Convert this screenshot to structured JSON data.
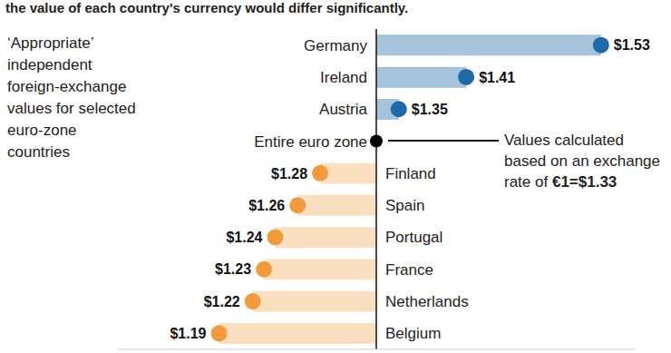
{
  "chart_data": {
    "type": "bar",
    "orientation": "horizontal",
    "title": "the value of each country's currency would differ significantly.",
    "description": "‘Appropriate’ independent foreign-exchange values for selected euro-zone countries",
    "annotation": [
      "Values calculated based on an exchange rate of",
      "€1=$1.33"
    ],
    "categories": [
      "Germany",
      "Ireland",
      "Austria",
      "Entire euro zone",
      "Finland",
      "Spain",
      "Portugal",
      "France",
      "Netherlands",
      "Belgium"
    ],
    "values": [
      1.53,
      1.41,
      1.35,
      1.33,
      1.28,
      1.26,
      1.24,
      1.23,
      1.22,
      1.19
    ],
    "value_labels": [
      "$1.53",
      "$1.41",
      "$1.35",
      null,
      "$1.28",
      "$1.26",
      "$1.24",
      "$1.23",
      "$1.22",
      "$1.19"
    ],
    "colors": [
      "#1e6aa6",
      "#1e6aa6",
      "#1e6aa6",
      "#000000",
      "#f39a3c",
      "#f39a3c",
      "#f39a3c",
      "#f39a3c",
      "#f39a3c",
      "#f39a3c"
    ],
    "data_labels": true,
    "xlim": [
      1.1,
      1.56
    ],
    "tick_labels": false,
    "grid": false
  }
}
